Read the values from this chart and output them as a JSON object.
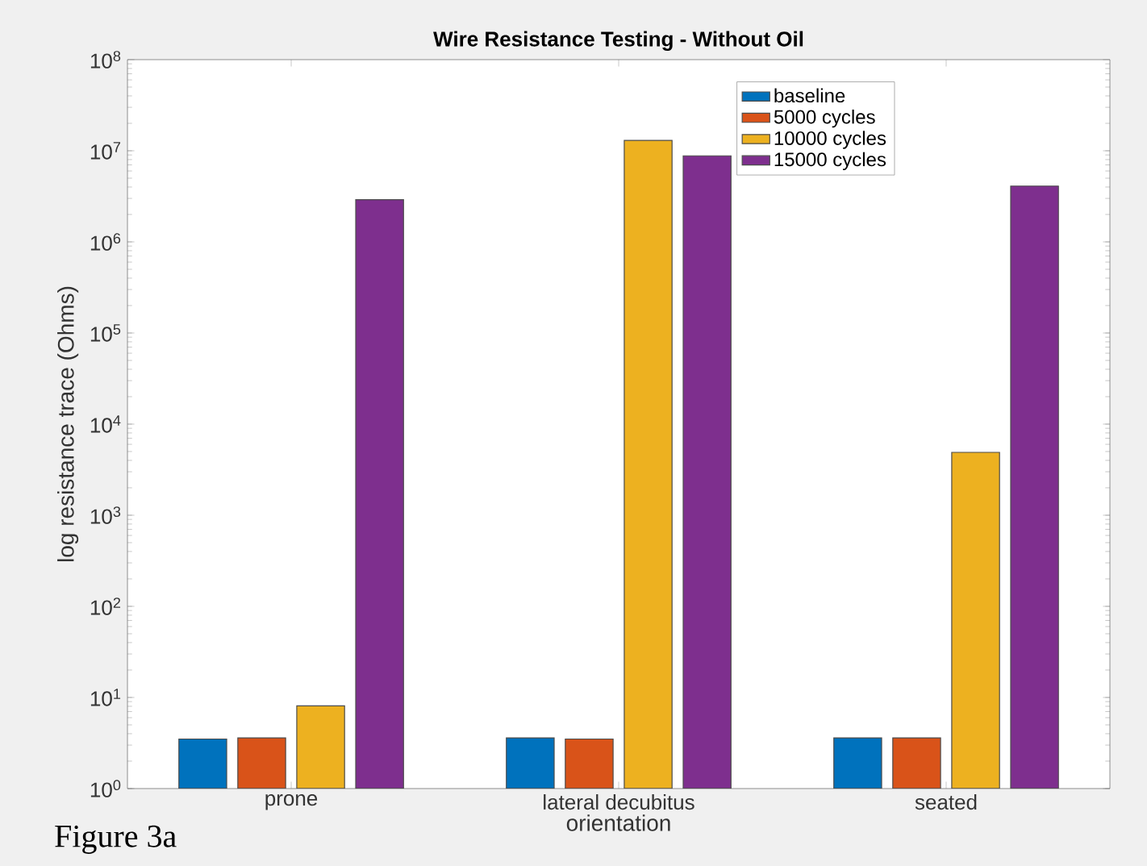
{
  "chart_data": {
    "type": "bar",
    "title": "Wire Resistance Testing - Without Oil",
    "xlabel": "orientation",
    "ylabel": "log resistance trace (Ohms)",
    "categories": [
      "prone",
      "lateral decubitus",
      "seated"
    ],
    "series": [
      {
        "name": "baseline",
        "color": "#0072bd",
        "values": [
          3.5,
          3.6,
          3.6
        ]
      },
      {
        "name": "5000 cycles",
        "color": "#d95319",
        "values": [
          3.6,
          3.5,
          3.6
        ]
      },
      {
        "name": "10000 cycles",
        "color": "#edb120",
        "values": [
          8.1,
          13000000,
          4900
        ]
      },
      {
        "name": "15000 cycles",
        "color": "#7e2f8e",
        "values": [
          2900000,
          8800000,
          4100000
        ]
      }
    ],
    "log": true,
    "ylim": [
      1,
      100000000
    ],
    "yticks": [
      {
        "value": 1,
        "label": "10$^{0}$"
      },
      {
        "value": 10,
        "label": "10$^{1}$"
      },
      {
        "value": 100,
        "label": "10$^{2}$"
      },
      {
        "value": 1000,
        "label": "10$^{3}$"
      },
      {
        "value": 10000,
        "label": "10$^{4}$"
      },
      {
        "value": 100000,
        "label": "10$^{5}$"
      },
      {
        "value": 1000000,
        "label": "10$^{6}$"
      },
      {
        "value": 10000000,
        "label": "10$^{7}$"
      },
      {
        "value": 100000000,
        "label": "10$^{8}$"
      }
    ],
    "legend": "top right",
    "grid": false,
    "annotations": [
      "Figure 3a"
    ]
  }
}
